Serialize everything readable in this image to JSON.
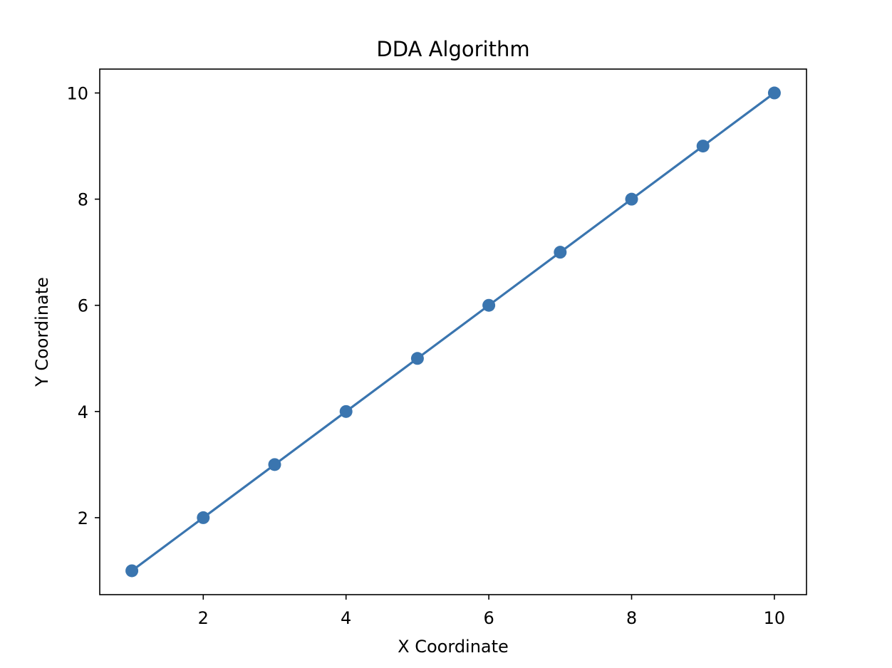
{
  "chart_data": {
    "type": "line",
    "title": "DDA Algorithm",
    "xlabel": "X Coordinate",
    "ylabel": "Y Coordinate",
    "x": [
      1,
      2,
      3,
      4,
      5,
      6,
      7,
      8,
      9,
      10
    ],
    "series": [
      {
        "values": [
          1,
          2,
          3,
          4,
          5,
          6,
          7,
          8,
          9,
          10
        ],
        "color": "#3a75af",
        "marker": "circle"
      }
    ],
    "xlim": [
      0.55,
      10.45
    ],
    "ylim": [
      0.55,
      10.45
    ],
    "xticks": [
      2,
      4,
      6,
      8,
      10
    ],
    "yticks": [
      2,
      4,
      6,
      8,
      10
    ],
    "xtick_labels": [
      "2",
      "4",
      "6",
      "8",
      "10"
    ],
    "ytick_labels": [
      "2",
      "4",
      "6",
      "8",
      "10"
    ],
    "grid": false,
    "legend": null
  }
}
